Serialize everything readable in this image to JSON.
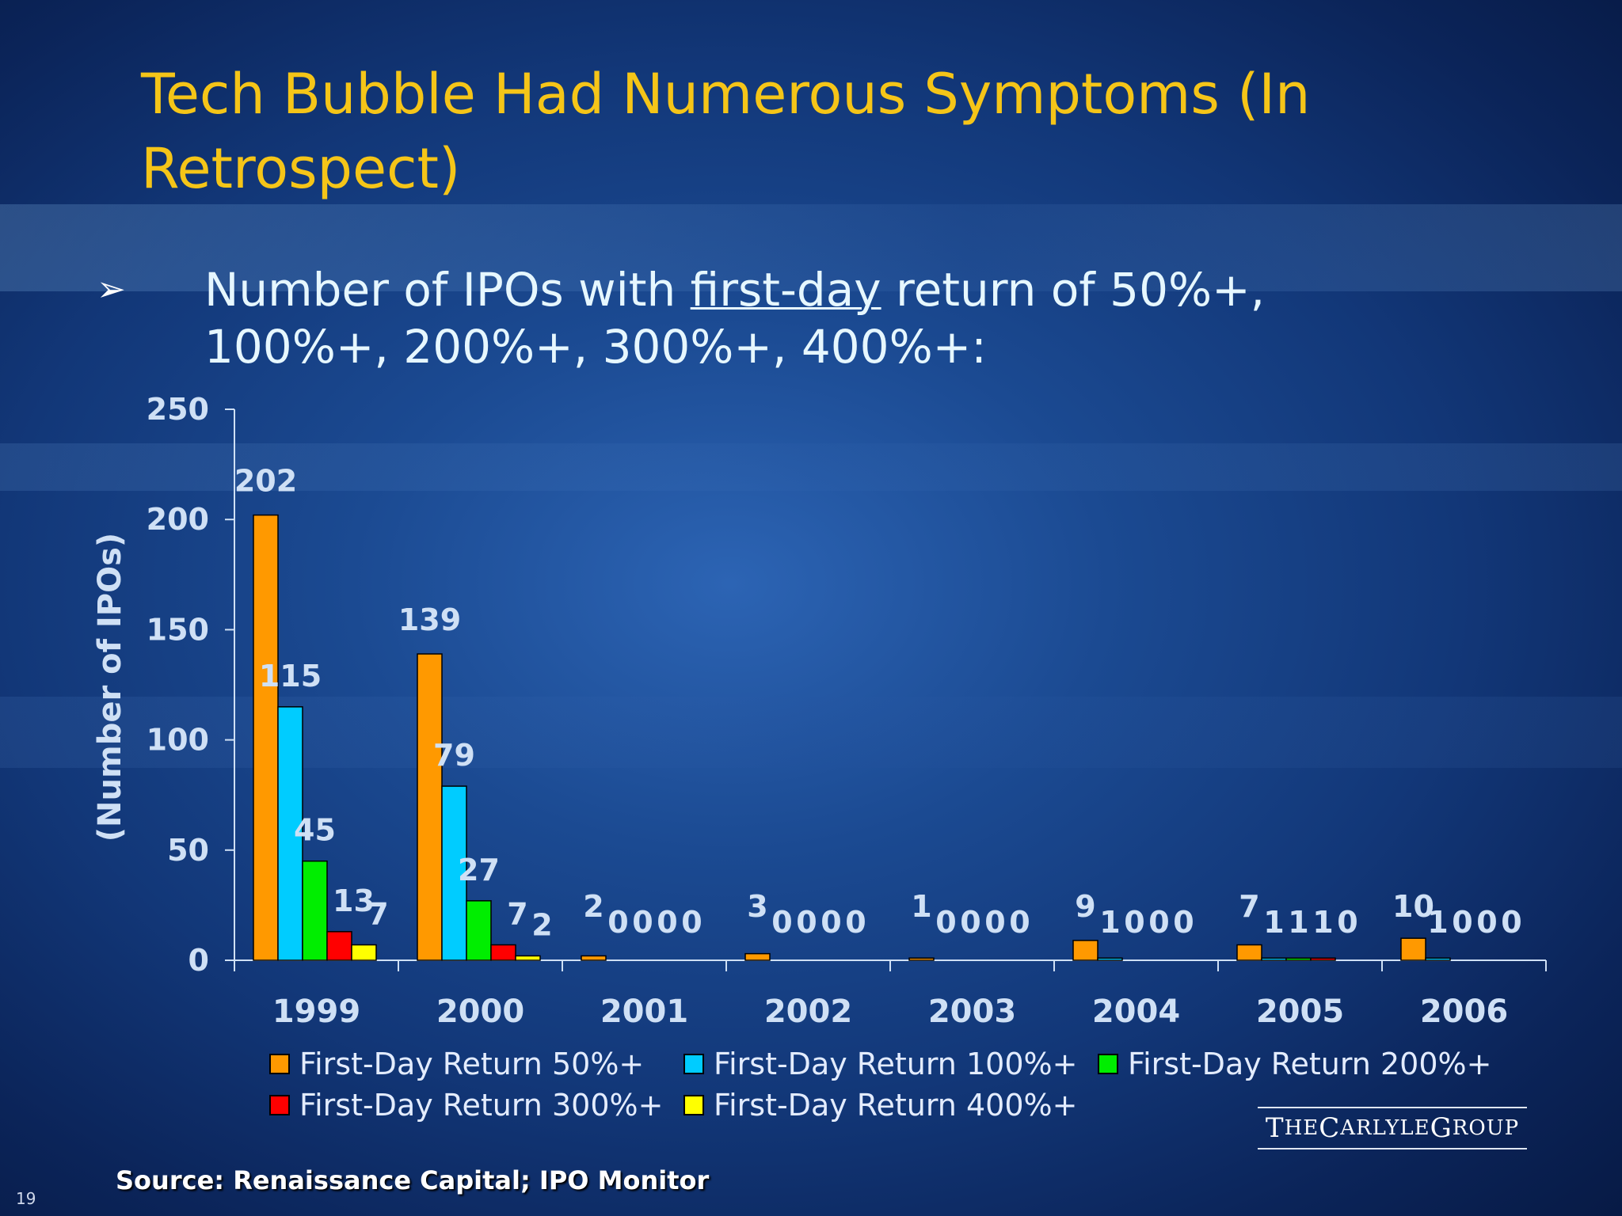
{
  "slide": {
    "title": "Tech Bubble Had Numerous Symptoms (In Retrospect)",
    "bullet_symbol": "➢",
    "subtitle_before": "Number of IPOs with ",
    "subtitle_underlined": "first-day",
    "subtitle_after": " return of 50%+, 100%+, 200%+, 300%+, 400%+:",
    "source": "Source: Renaissance Capital; IPO Monitor",
    "page_number": "19",
    "logo": {
      "initial1": "T",
      "rest1": "HE ",
      "initial2": "C",
      "rest2": "ARLYLE ",
      "initial3": "G",
      "rest3": "ROUP"
    },
    "colors": {
      "title": "#f5c518",
      "subtitle": "#e6f7ff",
      "axis_text": "#cfe0f5"
    }
  },
  "chart_data": {
    "type": "bar",
    "title": "",
    "xlabel": "",
    "ylabel": "(Number of IPOs)",
    "ylim": [
      0,
      250
    ],
    "yticks": [
      0,
      50,
      100,
      150,
      200,
      250
    ],
    "categories": [
      "1999",
      "2000",
      "2001",
      "2002",
      "2003",
      "2004",
      "2005",
      "2006"
    ],
    "series": [
      {
        "name": "First-Day Return 50%+",
        "color": "#ff9900",
        "values": [
          202,
          139,
          2,
          3,
          1,
          9,
          7,
          10
        ]
      },
      {
        "name": "First-Day Return 100%+",
        "color": "#00ccff",
        "values": [
          115,
          79,
          0,
          0,
          0,
          1,
          1,
          1
        ]
      },
      {
        "name": "First-Day Return 200%+",
        "color": "#00ee00",
        "values": [
          45,
          27,
          0,
          0,
          0,
          0,
          1,
          0
        ]
      },
      {
        "name": "First-Day Return 300%+",
        "color": "#ff0000",
        "values": [
          13,
          7,
          0,
          0,
          0,
          0,
          1,
          0
        ]
      },
      {
        "name": "First-Day Return 400%+",
        "color": "#ffff00",
        "values": [
          7,
          2,
          0,
          0,
          0,
          0,
          0,
          0
        ]
      }
    ],
    "legend_position": "bottom",
    "grid": false
  }
}
